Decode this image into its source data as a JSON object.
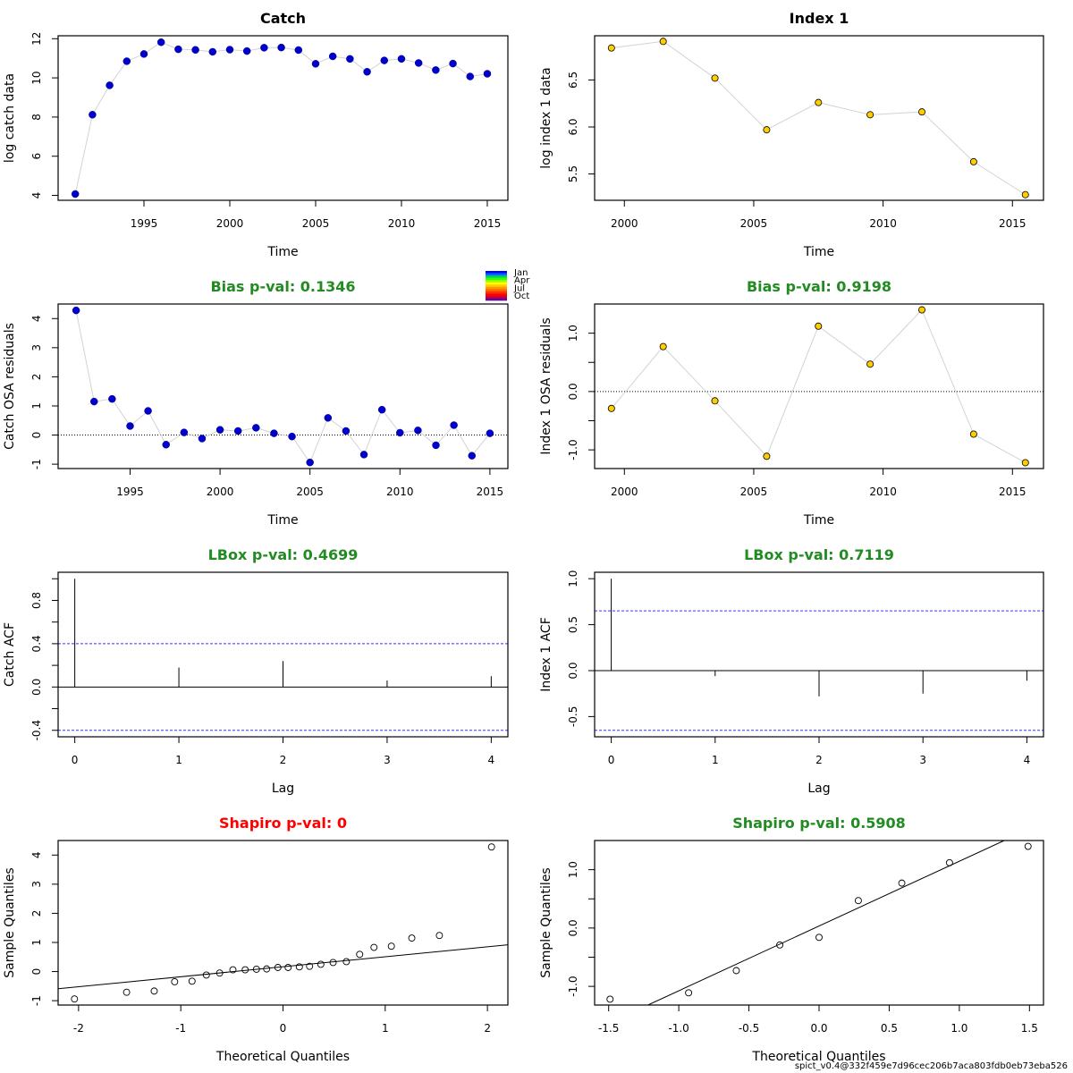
{
  "footer": "spict_v0.4@332f459e7d96cec206b7aca803fdb0eb73eba526",
  "colors": {
    "catch_point": "#0000CD",
    "index_point": "#FFCC00",
    "connector": "#D3D3D3",
    "ci_line": "#3333FF",
    "green_title": "#228B22",
    "red_title": "#FF0000"
  },
  "season_legend": {
    "labels": [
      "Jan",
      "Apr",
      "Jul",
      "Oct"
    ],
    "colors": [
      "#0000FF",
      "#0066FF",
      "#00CC66",
      "#33FF00",
      "#99FF00",
      "#FFFF00",
      "#FFCC00",
      "#FF9900",
      "#FF6600",
      "#FF3300",
      "#FF0000",
      "#CC0033",
      "#660099"
    ]
  },
  "chart_data": [
    {
      "id": "catch-data",
      "type": "line",
      "title": "Catch",
      "title_color": "#000000",
      "xlabel": "Time",
      "ylabel": "log catch data",
      "xlim": [
        1990.0,
        2016.2
      ],
      "ylim": [
        3.75,
        12.15
      ],
      "xticks": [
        1995,
        2000,
        2005,
        2010,
        2015
      ],
      "yticks": [
        4,
        6,
        8,
        10,
        12
      ],
      "marker": "filled",
      "point_color": "#0000CD",
      "x": [
        1991,
        1992,
        1993,
        1994,
        1995,
        1996,
        1997,
        1998,
        1999,
        2000,
        2001,
        2002,
        2003,
        2004,
        2005,
        2006,
        2007,
        2008,
        2009,
        2010,
        2011,
        2012,
        2013,
        2014,
        2015
      ],
      "y": [
        4.07,
        8.12,
        9.62,
        10.85,
        11.22,
        11.82,
        11.46,
        11.43,
        11.33,
        11.44,
        11.37,
        11.54,
        11.55,
        11.42,
        10.72,
        11.1,
        10.97,
        10.31,
        10.89,
        10.97,
        10.76,
        10.4,
        10.73,
        10.07,
        10.21
      ]
    },
    {
      "id": "index-data",
      "type": "line",
      "title": "Index 1",
      "title_color": "#000000",
      "xlabel": "Time",
      "ylabel": "log index 1 data",
      "xlim": [
        1998.85,
        2016.2
      ],
      "ylim": [
        5.22,
        6.97
      ],
      "xticks": [
        2000,
        2005,
        2010,
        2015
      ],
      "yticks": [
        5.5,
        6.0,
        6.5
      ],
      "ytick_labels": [
        "5.5",
        "6.0",
        "6.5"
      ],
      "marker": "filled-outline",
      "point_color": "#FFCC00",
      "x": [
        1999.5,
        2001.5,
        2003.5,
        2005.5,
        2007.5,
        2009.5,
        2011.5,
        2013.5,
        2015.5
      ],
      "y": [
        6.84,
        6.91,
        6.52,
        5.97,
        6.26,
        6.13,
        6.16,
        5.63,
        5.28
      ]
    },
    {
      "id": "catch-residuals",
      "type": "line",
      "title": "Bias p-val: 0.1346",
      "title_color": "#228B22",
      "xlabel": "Time",
      "ylabel": "Catch OSA residuals",
      "xlim": [
        1991.0,
        2016.0
      ],
      "ylim": [
        -1.15,
        4.5
      ],
      "xticks": [
        1995,
        2000,
        2005,
        2010,
        2015
      ],
      "yticks": [
        -1,
        0,
        1,
        2,
        3,
        4
      ],
      "hline": 0,
      "marker": "filled",
      "point_color": "#0000CD",
      "x": [
        1992,
        1993,
        1994,
        1995,
        1996,
        1997,
        1998,
        1999,
        2000,
        2001,
        2002,
        2003,
        2004,
        2005,
        2006,
        2007,
        2008,
        2009,
        2010,
        2011,
        2012,
        2013,
        2014,
        2015
      ],
      "y": [
        4.28,
        1.15,
        1.24,
        0.31,
        0.83,
        -0.33,
        0.09,
        -0.12,
        0.18,
        0.14,
        0.25,
        0.06,
        -0.05,
        -0.94,
        0.59,
        0.14,
        -0.67,
        0.87,
        0.08,
        0.16,
        -0.35,
        0.34,
        -0.71,
        0.06
      ]
    },
    {
      "id": "index-residuals",
      "type": "line",
      "title": "Bias p-val: 0.9198",
      "title_color": "#228B22",
      "xlabel": "Time",
      "ylabel": "Index 1 OSA residuals",
      "xlim": [
        1998.85,
        2016.2
      ],
      "ylim": [
        -1.32,
        1.5
      ],
      "xticks": [
        2000,
        2005,
        2010,
        2015
      ],
      "yticks": [
        -1.0,
        -0.5,
        0.0,
        0.5,
        1.0
      ],
      "ytick_labels": [
        "-1.0",
        "",
        "0.0",
        "",
        "1.0"
      ],
      "hline": 0,
      "marker": "filled-outline",
      "point_color": "#FFCC00",
      "x": [
        1999.5,
        2001.5,
        2003.5,
        2005.5,
        2007.5,
        2009.5,
        2011.5,
        2013.5,
        2015.5
      ],
      "y": [
        -0.29,
        0.77,
        -0.16,
        -1.11,
        1.12,
        0.47,
        1.4,
        -0.73,
        -1.22
      ]
    },
    {
      "id": "catch-acf",
      "type": "bar",
      "title": "LBox p-val: 0.4699",
      "title_color": "#228B22",
      "xlabel": "Lag",
      "ylabel": "Catch ACF",
      "xlim": [
        -0.16,
        4.16
      ],
      "ylim": [
        -0.46,
        1.06
      ],
      "xticks": [
        0,
        1,
        2,
        3,
        4
      ],
      "yticks": [
        -0.4,
        -0.2,
        0.0,
        0.2,
        0.4,
        0.6,
        0.8,
        1.0
      ],
      "ytick_labels": [
        "-0.4",
        "",
        "0.0",
        "",
        "0.4",
        "",
        "0.8",
        ""
      ],
      "categories": [
        0,
        1,
        2,
        3,
        4
      ],
      "values": [
        1.0,
        0.18,
        0.24,
        0.06,
        0.1
      ],
      "ci": 0.4
    },
    {
      "id": "index-acf",
      "type": "bar",
      "title": "LBox p-val: 0.7119",
      "title_color": "#228B22",
      "xlabel": "Lag",
      "ylabel": "Index 1 ACF",
      "xlim": [
        -0.16,
        4.16
      ],
      "ylim": [
        -0.72,
        1.07
      ],
      "xticks": [
        0,
        1,
        2,
        3,
        4
      ],
      "yticks": [
        -0.5,
        0.0,
        0.5,
        1.0
      ],
      "ytick_labels": [
        "-0.5",
        "0.0",
        "0.5",
        "1.0"
      ],
      "categories": [
        0,
        1,
        2,
        3,
        4
      ],
      "values": [
        1.0,
        -0.06,
        -0.28,
        -0.25,
        -0.11
      ],
      "ci": 0.65
    },
    {
      "id": "catch-qq",
      "type": "scatter",
      "title": "Shapiro p-val: 0",
      "title_color": "#FF0000",
      "xlabel": "Theoretical Quantiles",
      "ylabel": "Sample Quantiles",
      "xlim": [
        -2.2,
        2.2
      ],
      "ylim": [
        -1.15,
        4.5
      ],
      "xticks": [
        -2,
        -1,
        0,
        1,
        2
      ],
      "yticks": [
        -1,
        0,
        1,
        2,
        3,
        4
      ],
      "marker": "open",
      "x": [
        -2.04,
        -1.53,
        -1.26,
        -1.06,
        -0.89,
        -0.75,
        -0.62,
        -0.49,
        -0.37,
        -0.26,
        -0.16,
        -0.05,
        0.05,
        0.16,
        0.26,
        0.37,
        0.49,
        0.62,
        0.75,
        0.89,
        1.06,
        1.26,
        1.53,
        2.04
      ],
      "y": [
        -0.94,
        -0.71,
        -0.67,
        -0.35,
        -0.33,
        -0.12,
        -0.05,
        0.06,
        0.06,
        0.08,
        0.09,
        0.14,
        0.14,
        0.16,
        0.18,
        0.25,
        0.31,
        0.34,
        0.59,
        0.83,
        0.87,
        1.15,
        1.24,
        4.28
      ],
      "ref_line": {
        "x": [
          -2.2,
          2.2
        ],
        "y": [
          -0.59,
          0.92
        ]
      }
    },
    {
      "id": "index-qq",
      "type": "scatter",
      "title": "Shapiro p-val: 0.5908",
      "title_color": "#228B22",
      "xlabel": "Theoretical Quantiles",
      "ylabel": "Sample Quantiles",
      "xlim": [
        -1.6,
        1.6
      ],
      "ylim": [
        -1.32,
        1.5
      ],
      "xticks": [
        -1.5,
        -1.0,
        -0.5,
        0.0,
        0.5,
        1.0,
        1.5
      ],
      "xtick_labels": [
        "-1.5",
        "-1.0",
        "-0.5",
        "0.0",
        "0.5",
        "1.0",
        "1.5"
      ],
      "yticks": [
        -1.0,
        -0.5,
        0.0,
        0.5,
        1.0
      ],
      "ytick_labels": [
        "-1.0",
        "",
        "0.0",
        "",
        "1.0"
      ],
      "marker": "open",
      "x": [
        -1.49,
        -0.93,
        -0.59,
        -0.28,
        0.0,
        0.28,
        0.59,
        0.93,
        1.49
      ],
      "y": [
        -1.22,
        -1.11,
        -0.73,
        -0.29,
        -0.16,
        0.47,
        0.77,
        1.12,
        1.4
      ],
      "ref_line": {
        "x": [
          -1.22,
          1.32
        ],
        "y": [
          -1.32,
          1.5
        ]
      }
    }
  ]
}
